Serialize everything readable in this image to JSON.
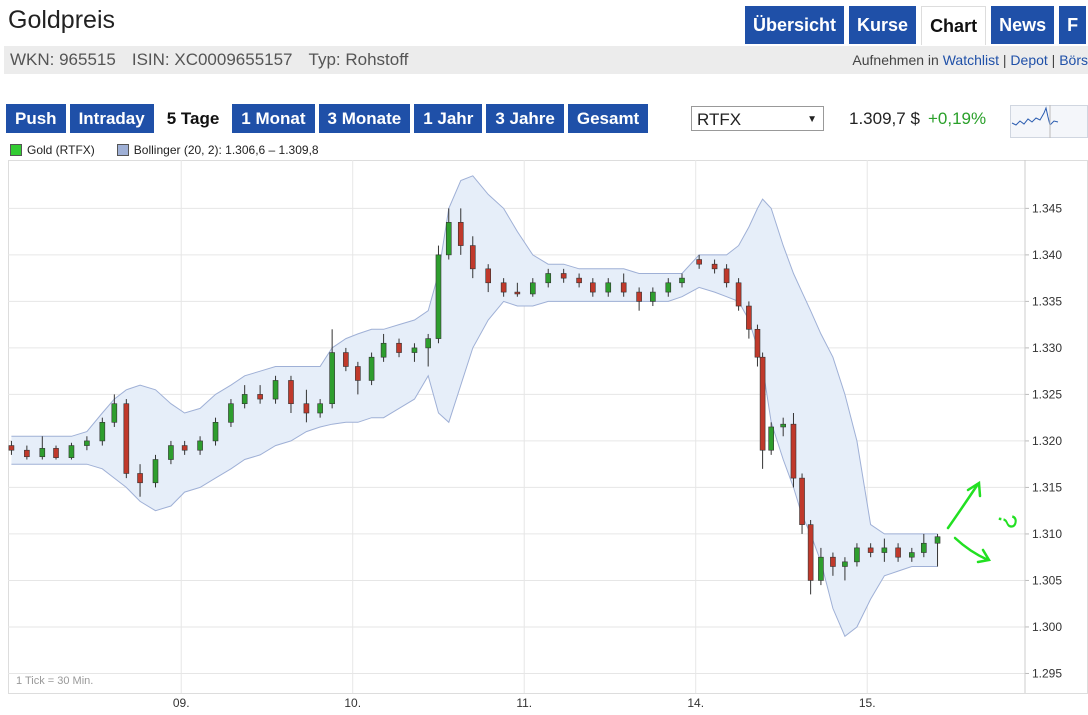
{
  "header": {
    "title": "Goldpreis",
    "nav": [
      "Übersicht",
      "Kurse",
      "Chart",
      "News",
      "F"
    ],
    "active_nav": 2
  },
  "info": [
    "WKN: 965515",
    "ISIN: XC0009655157",
    "Typ: Rohstoff"
  ],
  "links": {
    "prefix": "Aufnehmen in",
    "items": [
      "Watchlist",
      "Depot",
      "Börs"
    ]
  },
  "ranges": {
    "items": [
      "Push",
      "Intraday",
      "5 Tage",
      "1 Monat",
      "3 Monate",
      "1 Jahr",
      "3 Jahre",
      "Gesamt"
    ],
    "active": 2
  },
  "exchange": "RTFX",
  "price": "1.309,7 $",
  "change": "+0,19%",
  "chart_data": {
    "type": "candlestick",
    "series": [
      {
        "name": "Gold (RTFX)",
        "color": "#33cc33"
      },
      {
        "name": "Bollinger (20, 2): 1.306,6 – 1.309,8",
        "color": "#9fb0d6"
      }
    ],
    "up_color": "#2e9e2e",
    "down_color": "#c0392b",
    "note": "1 Tick = 30 Min.",
    "annotation": "?",
    "grid": true,
    "xlim": [
      -0.01,
      5.92
    ],
    "xticks": [
      {
        "value": 1,
        "label": "09."
      },
      {
        "value": 2,
        "label": "10."
      },
      {
        "value": 3,
        "label": "11."
      },
      {
        "value": 4,
        "label": "14."
      },
      {
        "value": 5,
        "label": "15."
      }
    ],
    "ylim": [
      1292.9,
      1350.2
    ],
    "yticks": [
      {
        "value": 1295,
        "label": "1.295"
      },
      {
        "value": 1300,
        "label": "1.300"
      },
      {
        "value": 1305,
        "label": "1.305"
      },
      {
        "value": 1310,
        "label": "1.310"
      },
      {
        "value": 1315,
        "label": "1.315"
      },
      {
        "value": 1320,
        "label": "1.320"
      },
      {
        "value": 1325,
        "label": "1.325"
      },
      {
        "value": 1330,
        "label": "1.330"
      },
      {
        "value": 1335,
        "label": "1.335"
      },
      {
        "value": 1340,
        "label": "1.340"
      },
      {
        "value": 1345,
        "label": "1.345"
      }
    ],
    "x": [
      0.01,
      0.1,
      0.19,
      0.27,
      0.36,
      0.45,
      0.54,
      0.61,
      0.68,
      0.76,
      0.85,
      0.94,
      1.02,
      1.11,
      1.2,
      1.29,
      1.37,
      1.46,
      1.55,
      1.64,
      1.73,
      1.81,
      1.88,
      1.96,
      2.03,
      2.11,
      2.18,
      2.27,
      2.36,
      2.44,
      2.5,
      2.56,
      2.63,
      2.7,
      2.79,
      2.88,
      2.96,
      3.05,
      3.14,
      3.23,
      3.32,
      3.4,
      3.49,
      3.58,
      3.67,
      3.75,
      3.84,
      3.92,
      4.02,
      4.11,
      4.18,
      4.25,
      4.31,
      4.36,
      4.39,
      4.44,
      4.51,
      4.57,
      4.62,
      4.67,
      4.73,
      4.8,
      4.87,
      4.94,
      5.02,
      5.1,
      5.18,
      5.26,
      5.33,
      5.41
    ],
    "open": [
      1319.5,
      1319,
      1318.3,
      1319.2,
      1318.2,
      1319.5,
      1320,
      1322,
      1324,
      1316.5,
      1315.5,
      1318,
      1319.5,
      1319,
      1320,
      1322,
      1324,
      1325,
      1324.5,
      1326.5,
      1324,
      1323,
      1324,
      1329.5,
      1328,
      1326.5,
      1329,
      1330.5,
      1329.5,
      1330,
      1331,
      1340,
      1343.5,
      1341,
      1338.5,
      1337,
      1336,
      1335.8,
      1337,
      1338,
      1337.5,
      1337,
      1336,
      1337,
      1336,
      1335,
      1336,
      1337,
      1339.5,
      1339,
      1338.5,
      1337,
      1334.5,
      1332,
      1329,
      1319,
      1321.5,
      1321.8,
      1316,
      1311,
      1305,
      1307.5,
      1306.5,
      1307,
      1308.5,
      1308,
      1308.5,
      1307.5,
      1308,
      1309
    ],
    "high": [
      1320,
      1319.5,
      1320.5,
      1319.5,
      1319.8,
      1320.5,
      1322.5,
      1325,
      1324.5,
      1317.5,
      1318.5,
      1320,
      1320,
      1320.5,
      1322.5,
      1324.5,
      1326,
      1326,
      1327,
      1327,
      1325.5,
      1324.5,
      1332,
      1330,
      1328.5,
      1329.5,
      1331.5,
      1331,
      1330.5,
      1331.5,
      1341,
      1345,
      1345,
      1342,
      1339,
      1337.5,
      1337,
      1337.5,
      1338.5,
      1338.5,
      1338,
      1337.5,
      1337.5,
      1338,
      1336.5,
      1336.5,
      1337.5,
      1338,
      1340,
      1339.5,
      1339,
      1337.5,
      1335,
      1332.5,
      1329.5,
      1322,
      1322.5,
      1323,
      1316.5,
      1311.5,
      1308.5,
      1308,
      1307.5,
      1309,
      1309,
      1309.5,
      1309,
      1308.5,
      1310,
      1310
    ],
    "low": [
      1318.5,
      1318,
      1318,
      1318,
      1318,
      1319,
      1319.5,
      1321.5,
      1316,
      1314,
      1315,
      1317.5,
      1318.5,
      1318.5,
      1319.5,
      1321.5,
      1323.5,
      1324,
      1324,
      1323,
      1322,
      1322.5,
      1323.5,
      1327.5,
      1325,
      1326,
      1328.5,
      1329,
      1328.5,
      1328,
      1330.5,
      1339.5,
      1340,
      1337.5,
      1336,
      1335.5,
      1335.5,
      1335.5,
      1336.5,
      1337,
      1336.5,
      1335.5,
      1335.5,
      1335.5,
      1334,
      1334.5,
      1335.5,
      1336.5,
      1338.5,
      1338,
      1336.5,
      1334,
      1331,
      1328,
      1317,
      1318.5,
      1320.5,
      1315,
      1310,
      1303.5,
      1304.5,
      1305.5,
      1305,
      1306.5,
      1307.5,
      1307,
      1307,
      1307,
      1307.5,
      1306.5
    ],
    "close": [
      1319,
      1318.3,
      1319.2,
      1318.2,
      1319.5,
      1320,
      1322,
      1324,
      1316.5,
      1315.5,
      1318,
      1319.5,
      1319,
      1320,
      1322,
      1324,
      1325,
      1324.5,
      1326.5,
      1324,
      1323,
      1324,
      1329.5,
      1328,
      1326.5,
      1329,
      1330.5,
      1329.5,
      1330,
      1331,
      1340,
      1343.5,
      1341,
      1338.5,
      1337,
      1336,
      1335.8,
      1337,
      1338,
      1337.5,
      1337,
      1336,
      1337,
      1336,
      1335,
      1336,
      1337,
      1337.5,
      1339,
      1338.5,
      1337,
      1334.5,
      1332,
      1329,
      1319,
      1321.5,
      1321.8,
      1316,
      1311,
      1305,
      1307.5,
      1306.5,
      1307,
      1308.5,
      1308,
      1308.5,
      1307.5,
      1308,
      1309,
      1309.7
    ],
    "bollinger": {
      "upper": [
        1320.5,
        1320.5,
        1320.5,
        1320.5,
        1320.5,
        1321,
        1323,
        1324.5,
        1325.5,
        1326,
        1325.5,
        1324,
        1323,
        1323.5,
        1325,
        1326,
        1327,
        1327.5,
        1328,
        1328,
        1328,
        1328,
        1330,
        1331,
        1331.5,
        1332,
        1332,
        1332.5,
        1333,
        1334,
        1338,
        1345,
        1348,
        1348.5,
        1346.5,
        1345,
        1342.5,
        1340,
        1339,
        1339,
        1338.5,
        1338.5,
        1338.5,
        1338.5,
        1338,
        1338,
        1338,
        1338,
        1340,
        1340,
        1340,
        1341,
        1343,
        1345,
        1346,
        1345,
        1341,
        1338,
        1336,
        1334,
        1331.5,
        1329,
        1325,
        1320,
        1311,
        1310,
        1310,
        1310,
        1310,
        1310
      ],
      "lower": [
        1317.5,
        1317.5,
        1317.5,
        1317.5,
        1317.5,
        1317.5,
        1317,
        1316,
        1315,
        1313.5,
        1312.5,
        1313,
        1314.5,
        1315,
        1316,
        1317,
        1318,
        1318.5,
        1319.5,
        1320,
        1321,
        1321.5,
        1321.8,
        1322,
        1322,
        1322.5,
        1322.5,
        1323.5,
        1324.5,
        1327,
        1323,
        1322,
        1326,
        1330,
        1333,
        1335,
        1334.5,
        1334.5,
        1335,
        1335,
        1335,
        1335,
        1335,
        1335,
        1335,
        1335,
        1335,
        1335.5,
        1336.5,
        1336,
        1335.5,
        1335,
        1333,
        1330,
        1328,
        1322,
        1318,
        1315,
        1312,
        1310,
        1307,
        1302,
        1299,
        1300,
        1303,
        1305.5,
        1306,
        1306.5,
        1306.5,
        1306.5
      ]
    }
  }
}
